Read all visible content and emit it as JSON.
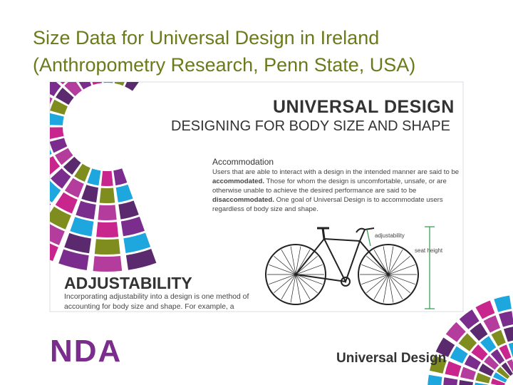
{
  "title_lines": [
    "Size Data for Universal Design in Ireland",
    "(Anthropometry Research, Penn State, USA)"
  ],
  "poster": {
    "heading": "UNIVERSAL DESIGN",
    "subheading": "DESIGNING FOR BODY SIZE AND SHAPE"
  },
  "accommodation": {
    "title": "Accommodation",
    "body": [
      "Users that are able to interact with a design in the intended manner are said to be ",
      "accommodated.",
      " Those for whom the design is uncomfortable, unsafe, or are otherwise unable to achieve the desired performance are said to be ",
      "disaccommodated.",
      " One goal of Universal Design is to accommodate users regardless of body size and shape."
    ]
  },
  "adjustability": {
    "title": "ADJUSTABILITY",
    "body": "Incorporating adjustability into a design is one method of accounting for body size and shape. For example, a"
  },
  "bike_labels": {
    "adjustability": "adjustability",
    "seat_height": "seat height"
  },
  "footer": {
    "logo": "NDA",
    "tagline": "Universal Design"
  }
}
